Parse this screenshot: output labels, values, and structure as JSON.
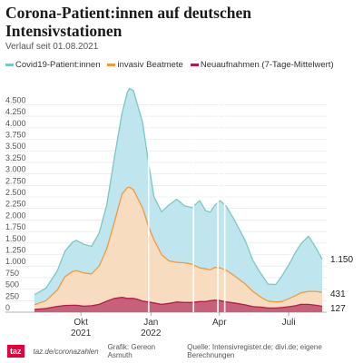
{
  "header": {
    "title": "Corona-Patient:innen auf deutschen Intensivstationen",
    "subtitle": "Verlauf seit 01.08.2021"
  },
  "legend": [
    {
      "label": "Covid19-Patient:innen",
      "color": "#7cc7c2"
    },
    {
      "label": "invasiv Beatmete",
      "color": "#f09a3e"
    },
    {
      "label": "Neuaufnahmen (7-Tage-Mittelwert)",
      "color": "#b01e4a"
    }
  ],
  "end_labels": {
    "covid": "1.150",
    "invasiv": "431",
    "neu": "127"
  },
  "footer": {
    "logo": "taz",
    "site": "taz.de/coronazahlen",
    "graphic": "Grafik: Gereon Asmuth",
    "source": "Quelle: Intensivregister.de; divi.de; eigene Berechnungen"
  },
  "colors": {
    "covid_fill": "#bfe6ef",
    "covid_line": "#7cc7c2",
    "invasiv_fill": "#f8dcc0",
    "invasiv_line": "#f09a3e",
    "neu_fill": "#c7607a",
    "neu_line": "#b01e4a"
  },
  "chart_data": {
    "type": "area",
    "x_unit": "date",
    "x_start": "2021-08-01",
    "xlim": [
      "2021-08-01",
      "2022-08-20"
    ],
    "ylim": [
      0,
      5000
    ],
    "y_ticks": [
      0,
      250,
      500,
      750,
      1000,
      1250,
      1500,
      1750,
      2000,
      2250,
      2500,
      2750,
      3000,
      3250,
      3500,
      3750,
      4000,
      4250,
      4500
    ],
    "y_tick_labels": [
      "0",
      "250",
      "500",
      "750",
      "1.000",
      "1.250",
      "1.500",
      "1.750",
      "2.000",
      "2.250",
      "2.500",
      "2.750",
      "3.000",
      "3.250",
      "3.500",
      "3.750",
      "4.000",
      "4.250",
      "4.500"
    ],
    "x_ticks": [
      {
        "date": "2021-10-01",
        "label": "Okt",
        "year": "2021"
      },
      {
        "date": "2022-01-01",
        "label": "Jan",
        "year": "2022"
      },
      {
        "date": "2022-04-01",
        "label": "Apr",
        "year": ""
      },
      {
        "date": "2022-07-01",
        "label": "Juli",
        "year": ""
      }
    ],
    "gaps": [
      "2021-12-29",
      "2022-02-26",
      "2022-03-30",
      "2022-04-08"
    ],
    "series": [
      {
        "name": "Covid19-Patient:innen",
        "dates": [
          "2021-08-01",
          "2021-08-16",
          "2021-08-31",
          "2021-09-10",
          "2021-09-20",
          "2021-09-25",
          "2021-10-05",
          "2021-10-15",
          "2021-10-25",
          "2021-11-04",
          "2021-11-14",
          "2021-11-24",
          "2021-12-01",
          "2021-12-04",
          "2021-12-09",
          "2021-12-14",
          "2021-12-21",
          "2021-12-29",
          "2022-01-05",
          "2022-01-15",
          "2022-01-25",
          "2022-02-04",
          "2022-02-14",
          "2022-02-24",
          "2022-03-06",
          "2022-03-14",
          "2022-03-20",
          "2022-03-26",
          "2022-04-02",
          "2022-04-10",
          "2022-04-20",
          "2022-05-05",
          "2022-05-15",
          "2022-05-25",
          "2022-06-04",
          "2022-06-14",
          "2022-06-22",
          "2022-07-02",
          "2022-07-10",
          "2022-07-17",
          "2022-07-27",
          "2022-08-06",
          "2022-08-14"
        ],
        "values": [
          380,
          520,
          900,
          1320,
          1520,
          1560,
          1470,
          1430,
          1720,
          2330,
          3350,
          4310,
          4770,
          4850,
          4810,
          4520,
          4120,
          3220,
          2500,
          2180,
          2330,
          2450,
          2310,
          2270,
          2420,
          2200,
          2170,
          2320,
          2420,
          2300,
          2020,
          1550,
          1120,
          850,
          610,
          600,
          780,
          1050,
          1300,
          1480,
          1650,
          1390,
          1150
        ]
      },
      {
        "name": "invasiv Beatmete",
        "dates": [
          "2021-08-01",
          "2021-08-16",
          "2021-08-31",
          "2021-09-10",
          "2021-09-20",
          "2021-09-25",
          "2021-10-05",
          "2021-10-15",
          "2021-10-25",
          "2021-11-04",
          "2021-11-14",
          "2021-11-24",
          "2021-12-01",
          "2021-12-04",
          "2021-12-09",
          "2021-12-14",
          "2021-12-21",
          "2021-12-29",
          "2022-01-05",
          "2022-01-15",
          "2022-01-25",
          "2022-02-04",
          "2022-02-14",
          "2022-02-24",
          "2022-03-06",
          "2022-03-14",
          "2022-03-20",
          "2022-03-26",
          "2022-04-02",
          "2022-04-10",
          "2022-04-20",
          "2022-05-05",
          "2022-05-15",
          "2022-05-25",
          "2022-06-04",
          "2022-06-14",
          "2022-06-22",
          "2022-07-02",
          "2022-07-10",
          "2022-07-17",
          "2022-07-27",
          "2022-08-06",
          "2022-08-14"
        ],
        "values": [
          160,
          250,
          480,
          770,
          880,
          900,
          850,
          830,
          1000,
          1380,
          1950,
          2560,
          2700,
          2710,
          2660,
          2490,
          2260,
          1850,
          1570,
          1250,
          1110,
          1080,
          1070,
          1040,
          960,
          940,
          920,
          970,
          960,
          910,
          800,
          610,
          450,
          330,
          240,
          220,
          230,
          300,
          360,
          420,
          450,
          450,
          431
        ]
      },
      {
        "name": "Neuaufnahmen (7-Tage-Mittelwert)",
        "dates": [
          "2021-08-01",
          "2021-08-16",
          "2021-08-31",
          "2021-09-10",
          "2021-09-20",
          "2021-09-25",
          "2021-10-05",
          "2021-10-15",
          "2021-10-25",
          "2021-11-04",
          "2021-11-14",
          "2021-11-24",
          "2021-12-01",
          "2021-12-04",
          "2021-12-09",
          "2021-12-14",
          "2021-12-21",
          "2021-12-29",
          "2022-01-05",
          "2022-01-15",
          "2022-01-25",
          "2022-02-04",
          "2022-02-14",
          "2022-02-24",
          "2022-03-06",
          "2022-03-14",
          "2022-03-20",
          "2022-03-26",
          "2022-04-02",
          "2022-04-10",
          "2022-04-20",
          "2022-05-05",
          "2022-05-15",
          "2022-05-25",
          "2022-06-04",
          "2022-06-14",
          "2022-06-22",
          "2022-07-02",
          "2022-07-10",
          "2022-07-17",
          "2022-07-27",
          "2022-08-06",
          "2022-08-14"
        ],
        "values": [
          60,
          80,
          125,
          145,
          150,
          150,
          130,
          140,
          170,
          240,
          300,
          320,
          300,
          300,
          300,
          280,
          240,
          220,
          200,
          170,
          190,
          220,
          210,
          210,
          230,
          230,
          250,
          260,
          250,
          225,
          200,
          160,
          120,
          110,
          90,
          90,
          100,
          120,
          140,
          170,
          170,
          150,
          127
        ]
      }
    ]
  }
}
